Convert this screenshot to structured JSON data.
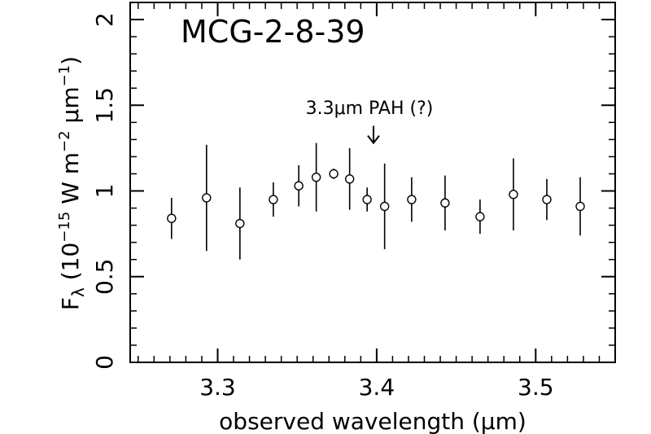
{
  "chart_data": {
    "type": "scatter",
    "title": "MCG-2-8-39",
    "xlabel": "observed wavelength (μm)",
    "ylabel": {
      "prefix": "F",
      "sub": "λ",
      "open": " (10",
      "exp1": "−15",
      "mid1": " W m",
      "exp2": "−2",
      "mid2": " μm",
      "exp3": "−1",
      "close": ")"
    },
    "xlim": [
      3.245,
      3.55
    ],
    "ylim": [
      0,
      2.1
    ],
    "x_ticks": [
      3.3,
      3.4,
      3.5
    ],
    "x_tick_labels": [
      "3.3",
      "3.4",
      "3.5"
    ],
    "y_ticks": [
      0,
      0.5,
      1,
      1.5,
      2
    ],
    "y_tick_labels": [
      "0",
      "0.5",
      "1",
      "1.5",
      "2"
    ],
    "grid": false,
    "annotation": {
      "text": "3.3μm PAH (?)",
      "arrow_x": 3.398,
      "arrow_y_top": 1.38,
      "arrow_y_bottom": 1.28
    },
    "points": [
      {
        "x": 3.271,
        "y": 0.84,
        "err": 0.12
      },
      {
        "x": 3.293,
        "y": 0.96,
        "err": 0.31
      },
      {
        "x": 3.314,
        "y": 0.81,
        "err": 0.21
      },
      {
        "x": 3.335,
        "y": 0.95,
        "err": 0.1
      },
      {
        "x": 3.351,
        "y": 1.03,
        "err": 0.12
      },
      {
        "x": 3.362,
        "y": 1.08,
        "err": 0.2
      },
      {
        "x": 3.373,
        "y": 1.1,
        "err": 0.03
      },
      {
        "x": 3.383,
        "y": 1.07,
        "err": 0.18
      },
      {
        "x": 3.394,
        "y": 0.95,
        "err": 0.07
      },
      {
        "x": 3.405,
        "y": 0.91,
        "err": 0.25
      },
      {
        "x": 3.422,
        "y": 0.95,
        "err": 0.13
      },
      {
        "x": 3.443,
        "y": 0.93,
        "err": 0.16
      },
      {
        "x": 3.465,
        "y": 0.85,
        "err": 0.1
      },
      {
        "x": 3.486,
        "y": 0.98,
        "err": 0.21
      },
      {
        "x": 3.507,
        "y": 0.95,
        "err": 0.12
      },
      {
        "x": 3.528,
        "y": 0.91,
        "err": 0.17
      }
    ]
  }
}
